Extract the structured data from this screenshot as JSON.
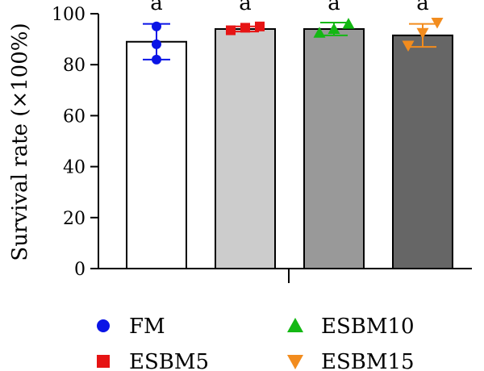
{
  "chart_data": {
    "type": "bar",
    "categories": [
      "FM",
      "ESBM5",
      "ESBM10",
      "ESBM15"
    ],
    "values": [
      89,
      94,
      94,
      91.5
    ],
    "errors": [
      7,
      1,
      2.5,
      4.5
    ],
    "points": [
      [
        82,
        88,
        95
      ],
      [
        93.5,
        94.5,
        95
      ],
      [
        92.5,
        94,
        96
      ],
      [
        87.5,
        92.5,
        96.5
      ]
    ],
    "significance_labels": [
      "a",
      "a",
      "a",
      "a"
    ],
    "bar_colors": [
      "#ffffff",
      "#cccccc",
      "#999999",
      "#666666"
    ],
    "marker_colors": [
      "#0a14e6",
      "#e61414",
      "#14b814",
      "#f28c1e"
    ],
    "marker_shapes": [
      "circle",
      "square",
      "triangle-up",
      "triangle-down"
    ],
    "title": "",
    "xlabel": "",
    "ylabel": "Survival rate (×100%)",
    "ylim": [
      0,
      100
    ],
    "yticks": [
      0,
      20,
      40,
      60,
      80,
      100
    ],
    "legend": {
      "position": "bottom",
      "entries": [
        "FM",
        "ESBM5",
        "ESBM10",
        "ESBM15"
      ]
    }
  }
}
